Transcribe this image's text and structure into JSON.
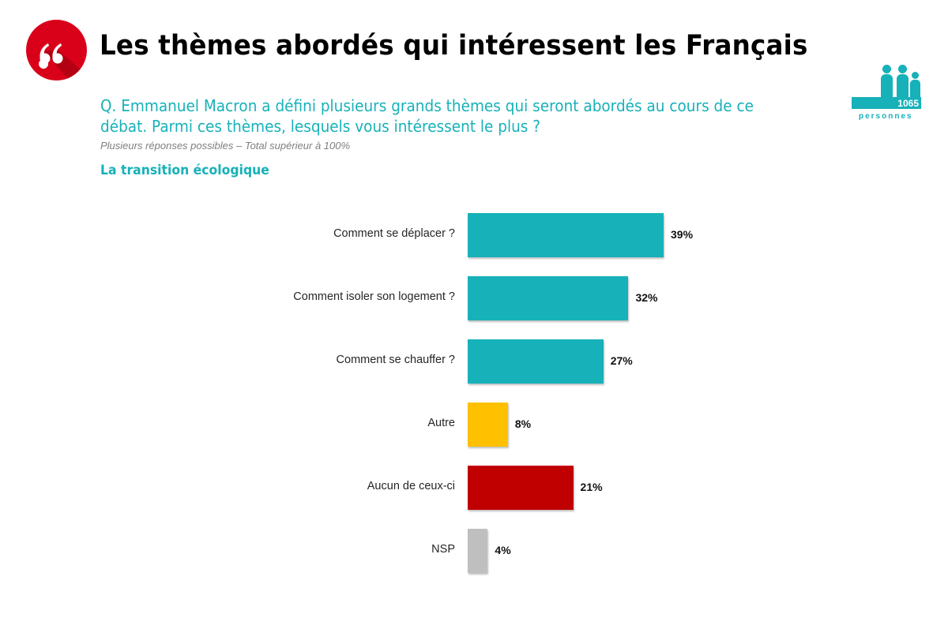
{
  "header": {
    "logo_icon": "quote-icon",
    "title": "Les thèmes abordés qui intéressent les Français",
    "question": "Q. Emmanuel Macron a défini plusieurs grands thèmes qui seront abordés au cours de ce débat. Parmi ces thèmes, lesquels vous intéressent le plus ?",
    "note": "Plusieurs réponses possibles – Total supérieur à 100%",
    "subtitle": "La transition écologique"
  },
  "sample": {
    "icon": "people-icon",
    "count": "1065",
    "label": "personnes"
  },
  "colors": {
    "accent": "#17b1b9",
    "brand_red": "#d9001a"
  },
  "chart_data": {
    "type": "bar",
    "orientation": "horizontal",
    "title": "La transition écologique",
    "xlabel": "",
    "ylabel": "",
    "xlim": [
      0,
      40
    ],
    "grid": false,
    "categories": [
      "Comment se déplacer ?",
      "Comment isoler son logement ?",
      "Comment se chauffer ?",
      "Autre",
      "Aucun de ceux-ci",
      "NSP"
    ],
    "values": [
      39,
      32,
      27,
      8,
      21,
      4
    ],
    "value_labels": [
      "39%",
      "32%",
      "27%",
      "8%",
      "21%",
      "4%"
    ],
    "bar_colors": [
      "#17b1b9",
      "#17b1b9",
      "#17b1b9",
      "#ffc000",
      "#c00000",
      "#bfbfbf"
    ],
    "unit": "%"
  }
}
